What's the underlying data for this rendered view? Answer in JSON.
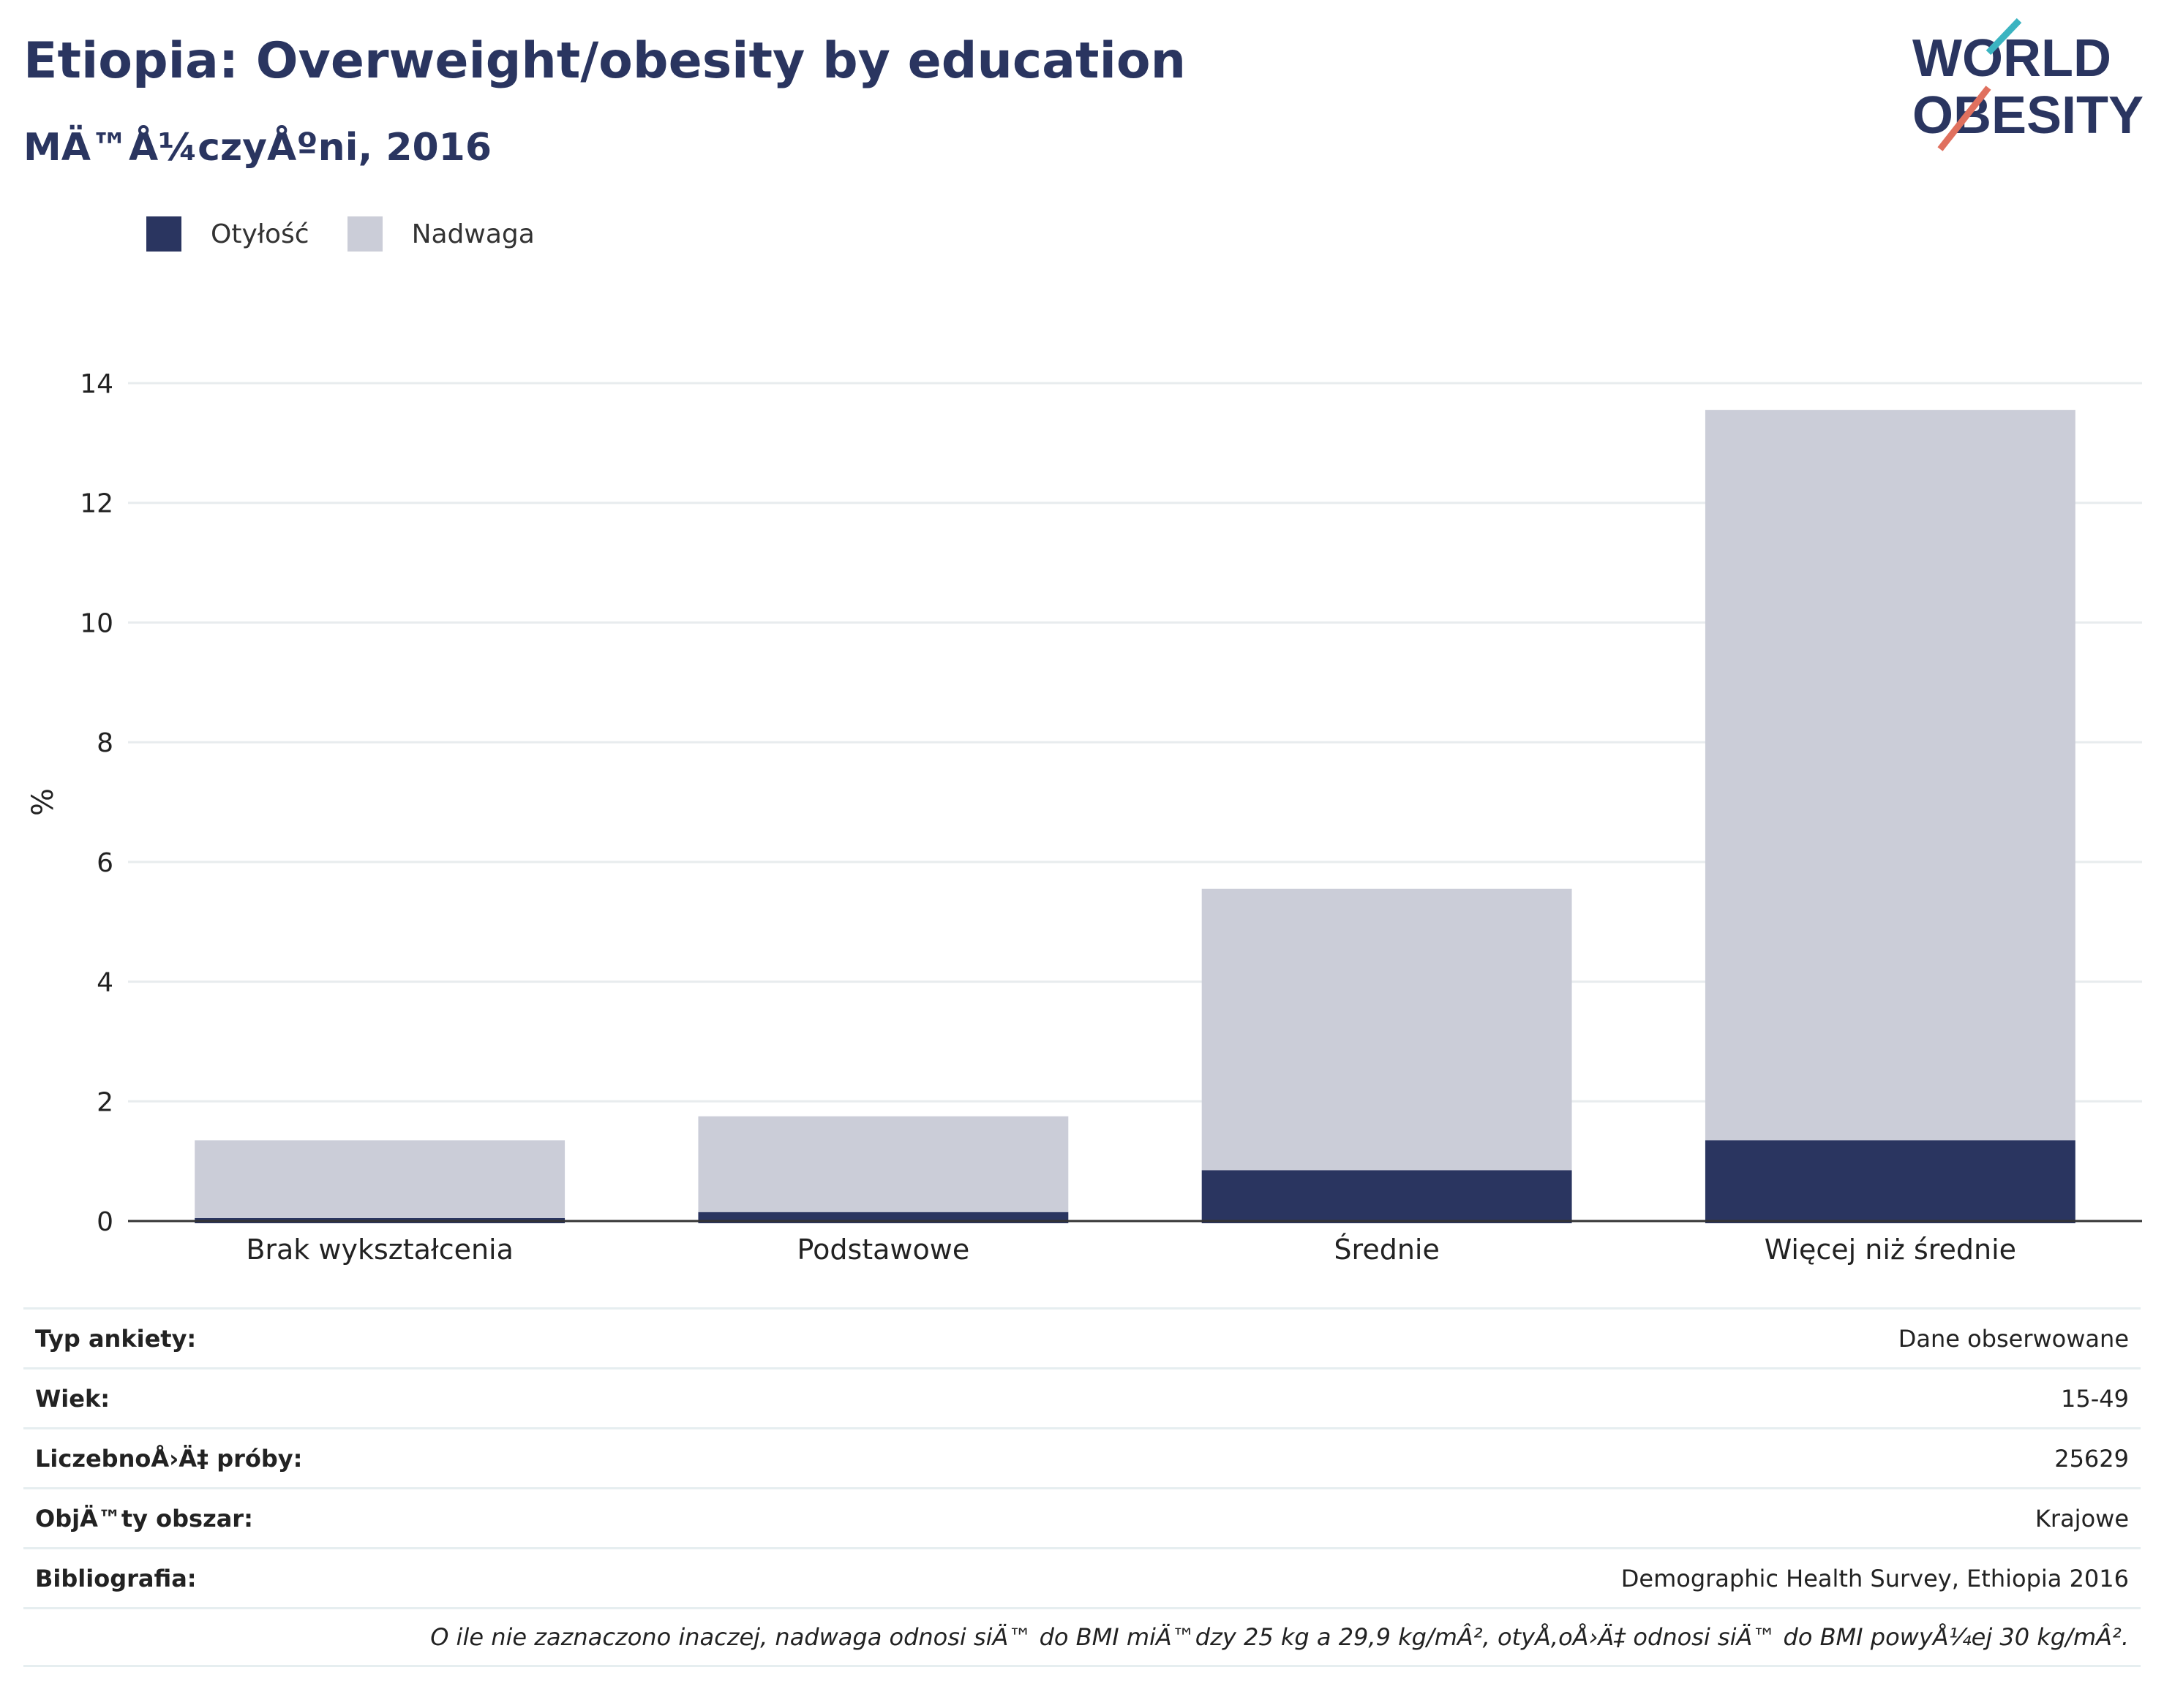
{
  "header": {
    "title": "Etiopia: Overweight/obesity by education",
    "subtitle": "MÄ™Å¼czyÅºni, 2016"
  },
  "logo": {
    "line1": "WORLD",
    "line2": "OBESITY"
  },
  "colors": {
    "obesity": "#2a3560",
    "overweight": "#cbcdd8",
    "gridline": "#e8ecee",
    "axis": "#333333"
  },
  "chart_data": {
    "type": "bar",
    "stacked": true,
    "categories": [
      "Brak wykształcenia",
      "Podstawowe",
      "Średnie",
      "Więcej niż średnie"
    ],
    "series": [
      {
        "name": "Otyłość",
        "values": [
          0.05,
          0.15,
          0.85,
          1.35
        ]
      },
      {
        "name": "Nadwaga",
        "values": [
          1.3,
          1.6,
          4.7,
          12.2
        ]
      }
    ],
    "ylabel": "%",
    "ylim": [
      0,
      14
    ],
    "yticks": [
      0,
      2,
      4,
      6,
      8,
      10,
      12,
      14
    ],
    "grid": true,
    "legend_position": "top-left"
  },
  "legend": [
    {
      "label": "Otyłość",
      "color": "#2a3560"
    },
    {
      "label": "Nadwaga",
      "color": "#cbcdd8"
    }
  ],
  "table": {
    "rows": [
      {
        "key": "Typ ankiety:",
        "value": "Dane obserwowane"
      },
      {
        "key": "Wiek:",
        "value": "15-49"
      },
      {
        "key": "LiczebnoÅ›Ä‡ próby:",
        "value": "25629"
      },
      {
        "key": "ObjÄ™ty obszar:",
        "value": "Krajowe"
      },
      {
        "key": "Bibliografia:",
        "value": "Demographic Health Survey, Ethiopia 2016"
      }
    ],
    "note": "O ile nie zaznaczono inaczej, nadwaga odnosi siÄ™ do BMI miÄ™dzy 25 kg a 29,9 kg/mÂ², otyÅ‚oÅ›Ä‡ odnosi siÄ™ do BMI powyÅ¼ej 30 kg/mÂ²."
  }
}
